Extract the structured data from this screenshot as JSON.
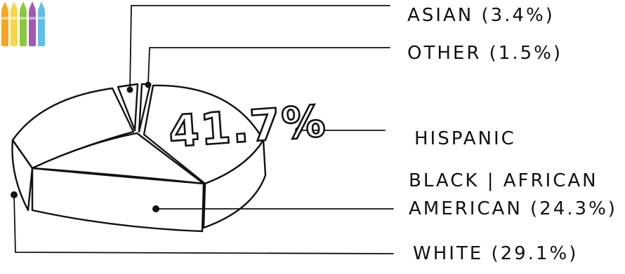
{
  "chart_data": {
    "type": "pie",
    "style": "hand-drawn 3d",
    "highlight_label": "41.7%",
    "slices": [
      {
        "label": "ASIAN (3.4%)",
        "value": 3.4
      },
      {
        "label": "OTHER (1.5%)",
        "value": 1.5
      },
      {
        "label": "HISPANIC",
        "value": 41.7
      },
      {
        "label_lines": [
          "BLACK | AFRICAN",
          "AMERICAN (24.3%)"
        ],
        "value": 24.3
      },
      {
        "label": "WHITE (29.1%)",
        "value": 29.1
      }
    ]
  },
  "logo": {
    "name": "crayons-icon",
    "colors": [
      "#f5a623",
      "#f8d848",
      "#8cc63f",
      "#a05ab4",
      "#5bc0eb"
    ]
  }
}
